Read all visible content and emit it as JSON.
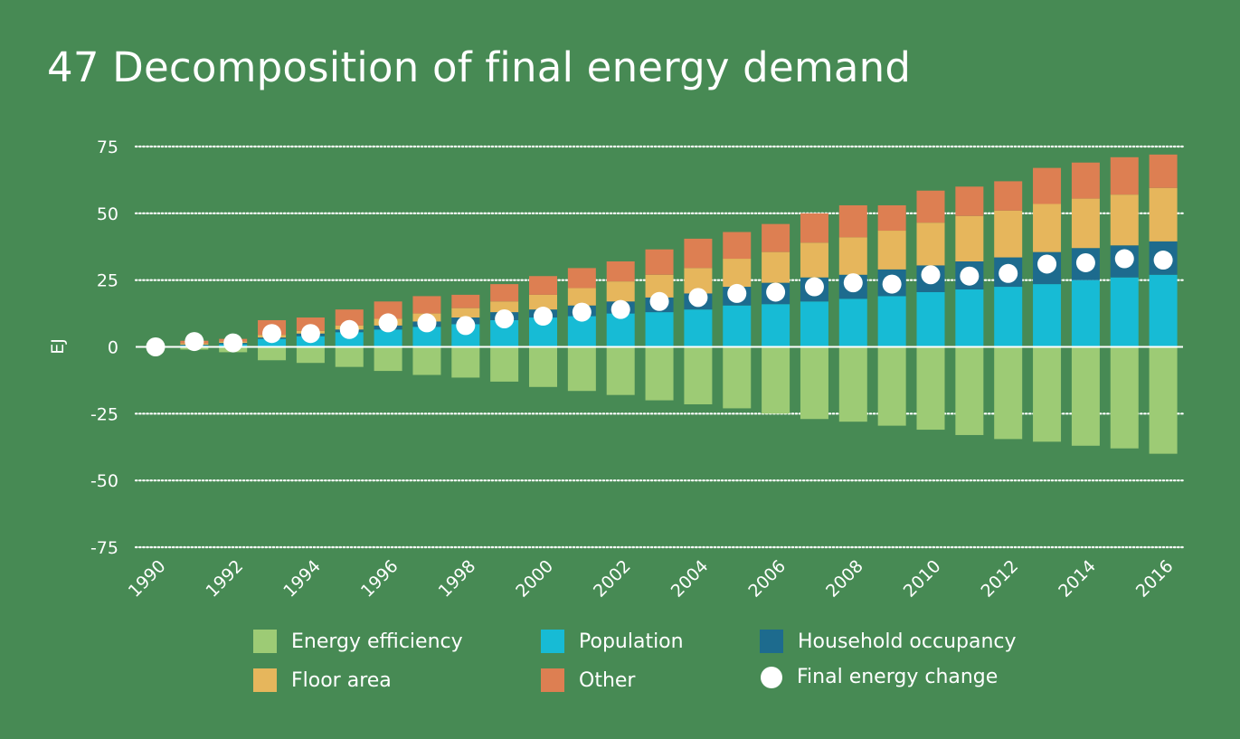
{
  "title": "47 Decomposition of final energy demand",
  "chart_data": {
    "type": "bar",
    "stacked": true,
    "title": "47 Decomposition of final energy demand",
    "ylabel": "EJ",
    "xlabel": "",
    "ylim": [
      -75,
      75
    ],
    "yticks": [
      75,
      50,
      25,
      0,
      -25,
      -50,
      -75
    ],
    "ytick_labels": [
      "75",
      "50",
      "25",
      "0",
      "-25",
      "-50",
      "-75"
    ],
    "grid": "horizontal-dotted",
    "categories": [
      "1990",
      "1991",
      "1992",
      "1993",
      "1994",
      "1995",
      "1996",
      "1997",
      "1998",
      "1999",
      "2000",
      "2001",
      "2002",
      "2003",
      "2004",
      "2005",
      "2006",
      "2007",
      "2008",
      "2009",
      "2010",
      "2011",
      "2012",
      "2013",
      "2014",
      "2015",
      "2016"
    ],
    "xtick_labels": [
      "1990",
      "",
      "1992",
      "",
      "1994",
      "",
      "1996",
      "",
      "1998",
      "",
      "2000",
      "",
      "2002",
      "",
      "2004",
      "",
      "2006",
      "",
      "2008",
      "",
      "2010",
      "",
      "2012",
      "",
      "2014",
      "",
      "2016"
    ],
    "series": [
      {
        "name": "Energy efficiency",
        "kind": "bar",
        "color": "#9dcb75",
        "values": [
          0,
          -1,
          -2,
          -5,
          -6,
          -7.5,
          -9,
          -10.5,
          -11.5,
          -13,
          -15,
          -16.5,
          -18,
          -20,
          -21.5,
          -23,
          -25,
          -27,
          -28,
          -29.5,
          -31,
          -33,
          -34.5,
          -35.5,
          -37,
          -38,
          -40
        ]
      },
      {
        "name": "Population",
        "kind": "bar",
        "color": "#17bbd5",
        "values": [
          0,
          0.5,
          1,
          3,
          4,
          5.5,
          6.5,
          7.5,
          8.5,
          10,
          11,
          11.5,
          12.5,
          13,
          14,
          15.5,
          16,
          17,
          18,
          19,
          20.5,
          21.5,
          22.5,
          23.5,
          25,
          26,
          27
        ]
      },
      {
        "name": "Household occupancy",
        "kind": "bar",
        "color": "#1d6b8e",
        "values": [
          0,
          0.3,
          0.5,
          0.5,
          1,
          1,
          1.5,
          2,
          2.5,
          3,
          3,
          4,
          4.5,
          5.5,
          6,
          7,
          8,
          9,
          9,
          10,
          10,
          10.5,
          11,
          12,
          12,
          12,
          12.5
        ]
      },
      {
        "name": "Floor area",
        "kind": "bar",
        "color": "#e6b65c",
        "values": [
          0,
          0.5,
          0.5,
          1,
          1,
          1.5,
          2.5,
          3,
          3.5,
          4,
          5.5,
          6.5,
          7.5,
          8.5,
          9.5,
          10.5,
          11.5,
          13,
          14,
          14.5,
          16,
          17,
          17.5,
          18,
          18.5,
          19,
          20
        ]
      },
      {
        "name": "Other",
        "kind": "bar",
        "color": "#dd7f52",
        "values": [
          0,
          1,
          1,
          5.5,
          5,
          6,
          6.5,
          6.5,
          5,
          6.5,
          7,
          7.5,
          7.5,
          9.5,
          11,
          10,
          10.5,
          11,
          12,
          9.5,
          12,
          11,
          11,
          13.5,
          13.5,
          14,
          12.5
        ]
      },
      {
        "name": "Final energy change",
        "kind": "scatter",
        "color": "#ffffff",
        "values": [
          0,
          2,
          1.5,
          5,
          5,
          6.5,
          9,
          9,
          8,
          10.5,
          11.5,
          13,
          14,
          17,
          18.5,
          20,
          20.5,
          22.5,
          24,
          23.5,
          27,
          26.5,
          27.5,
          31,
          31.5,
          33,
          32.5
        ]
      }
    ],
    "legend": {
      "position": "bottom",
      "items": [
        {
          "label": "Energy efficiency",
          "color": "#9dcb75",
          "shape": "square"
        },
        {
          "label": "Population",
          "color": "#17bbd5",
          "shape": "square"
        },
        {
          "label": "Household occupancy",
          "color": "#1d6b8e",
          "shape": "square"
        },
        {
          "label": "Floor area",
          "color": "#e6b65c",
          "shape": "square"
        },
        {
          "label": "Other",
          "color": "#dd7f52",
          "shape": "square"
        },
        {
          "label": "Final energy change",
          "color": "#ffffff",
          "shape": "circle"
        }
      ]
    }
  },
  "colors": {
    "background": "#478a54",
    "text": "#ffffff",
    "gridline": "#ffffff",
    "zero_line": "#ffffff"
  }
}
